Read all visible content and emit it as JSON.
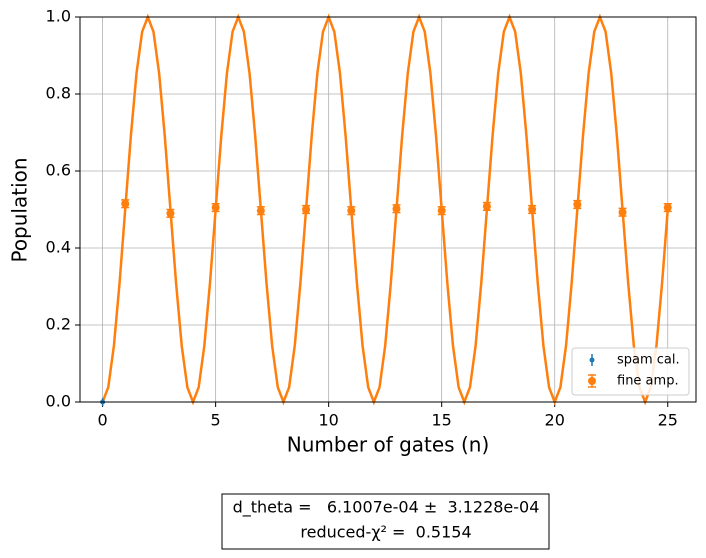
{
  "chart_data": {
    "type": "errorbar",
    "xlabel": "Number of gates (n)",
    "ylabel": "Population",
    "xlim": [
      -1.0,
      26.25
    ],
    "ylim": [
      0,
      1
    ],
    "xticks": [
      0,
      5,
      10,
      15,
      20,
      25
    ],
    "yticks": [
      {
        "value": 0,
        "label": "0.0"
      },
      {
        "value": 0.2,
        "label": "0.2"
      },
      {
        "value": 0.4,
        "label": "0.4"
      },
      {
        "value": 0.6,
        "label": "0.6"
      },
      {
        "value": 0.8,
        "label": "0.8"
      },
      {
        "value": 1,
        "label": "1.0"
      }
    ],
    "grid": true,
    "legend": "lower right",
    "series": [
      {
        "name": "spam cal.",
        "color": "#1f77b4",
        "x": [
          0
        ],
        "values": [
          0.0
        ],
        "errors": [
          0.01
        ]
      },
      {
        "name": "fine amp.",
        "color": "#ff7f0e",
        "x": [
          1,
          3,
          5,
          7,
          9,
          11,
          13,
          15,
          17,
          19,
          21,
          23,
          25
        ],
        "values": [
          0.515,
          0.49,
          0.505,
          0.497,
          0.5,
          0.497,
          0.502,
          0.497,
          0.508,
          0.5,
          0.513,
          0.493,
          0.505
        ],
        "errors": [
          0.01,
          0.01,
          0.01,
          0.01,
          0.01,
          0.01,
          0.01,
          0.01,
          0.01,
          0.01,
          0.01,
          0.01,
          0.01
        ]
      }
    ],
    "fit": {
      "color": "#ff7f0e",
      "x": [
        0,
        0.25,
        0.5,
        0.75,
        1,
        1.25,
        1.5,
        1.75,
        2,
        2.25,
        2.5,
        2.75,
        3,
        3.25,
        3.5,
        3.75,
        4,
        4.25,
        4.5,
        4.75,
        5,
        5.25,
        5.5,
        5.75,
        6,
        6.25,
        6.5,
        6.75,
        7,
        7.25,
        7.5,
        7.75,
        8,
        8.25,
        8.5,
        8.75,
        9,
        9.25,
        9.5,
        9.75,
        10,
        10.25,
        10.5,
        10.75,
        11,
        11.25,
        11.5,
        11.75,
        12,
        12.25,
        12.5,
        12.75,
        13,
        13.25,
        13.5,
        13.75,
        14,
        14.25,
        14.5,
        14.75,
        15,
        15.25,
        15.5,
        15.75,
        16,
        16.25,
        16.5,
        16.75,
        17,
        17.25,
        17.5,
        17.75,
        18,
        18.25,
        18.5,
        18.75,
        19,
        19.25,
        19.5,
        19.75,
        20,
        20.25,
        20.5,
        20.75,
        21,
        21.25,
        21.5,
        21.75,
        22,
        22.25,
        22.5,
        22.75,
        23,
        23.25,
        23.5,
        23.75,
        24,
        24.25,
        24.5,
        24.75,
        25
      ],
      "values": [
        0,
        0.038,
        0.146,
        0.309,
        0.5,
        0.691,
        0.854,
        0.962,
        1,
        0.962,
        0.854,
        0.691,
        0.5,
        0.309,
        0.146,
        0.038,
        0,
        0.038,
        0.146,
        0.309,
        0.5,
        0.691,
        0.854,
        0.962,
        1,
        0.962,
        0.854,
        0.691,
        0.5,
        0.309,
        0.146,
        0.038,
        0,
        0.038,
        0.146,
        0.309,
        0.5,
        0.691,
        0.854,
        0.962,
        1,
        0.962,
        0.854,
        0.691,
        0.5,
        0.309,
        0.146,
        0.038,
        0,
        0.038,
        0.146,
        0.309,
        0.5,
        0.691,
        0.854,
        0.962,
        1,
        0.962,
        0.854,
        0.691,
        0.5,
        0.309,
        0.146,
        0.038,
        0,
        0.038,
        0.146,
        0.309,
        0.5,
        0.691,
        0.854,
        0.962,
        1,
        0.962,
        0.854,
        0.691,
        0.5,
        0.309,
        0.146,
        0.038,
        0,
        0.038,
        0.146,
        0.309,
        0.5,
        0.691,
        0.854,
        0.962,
        1,
        0.962,
        0.854,
        0.691,
        0.5,
        0.309,
        0.146,
        0.038,
        0,
        0.038,
        0.146,
        0.309,
        0.5
      ]
    },
    "annotation": [
      "d_theta =   6.1007e-04 ±  3.1228e-04",
      "reduced-χ² =  0.5154"
    ]
  }
}
